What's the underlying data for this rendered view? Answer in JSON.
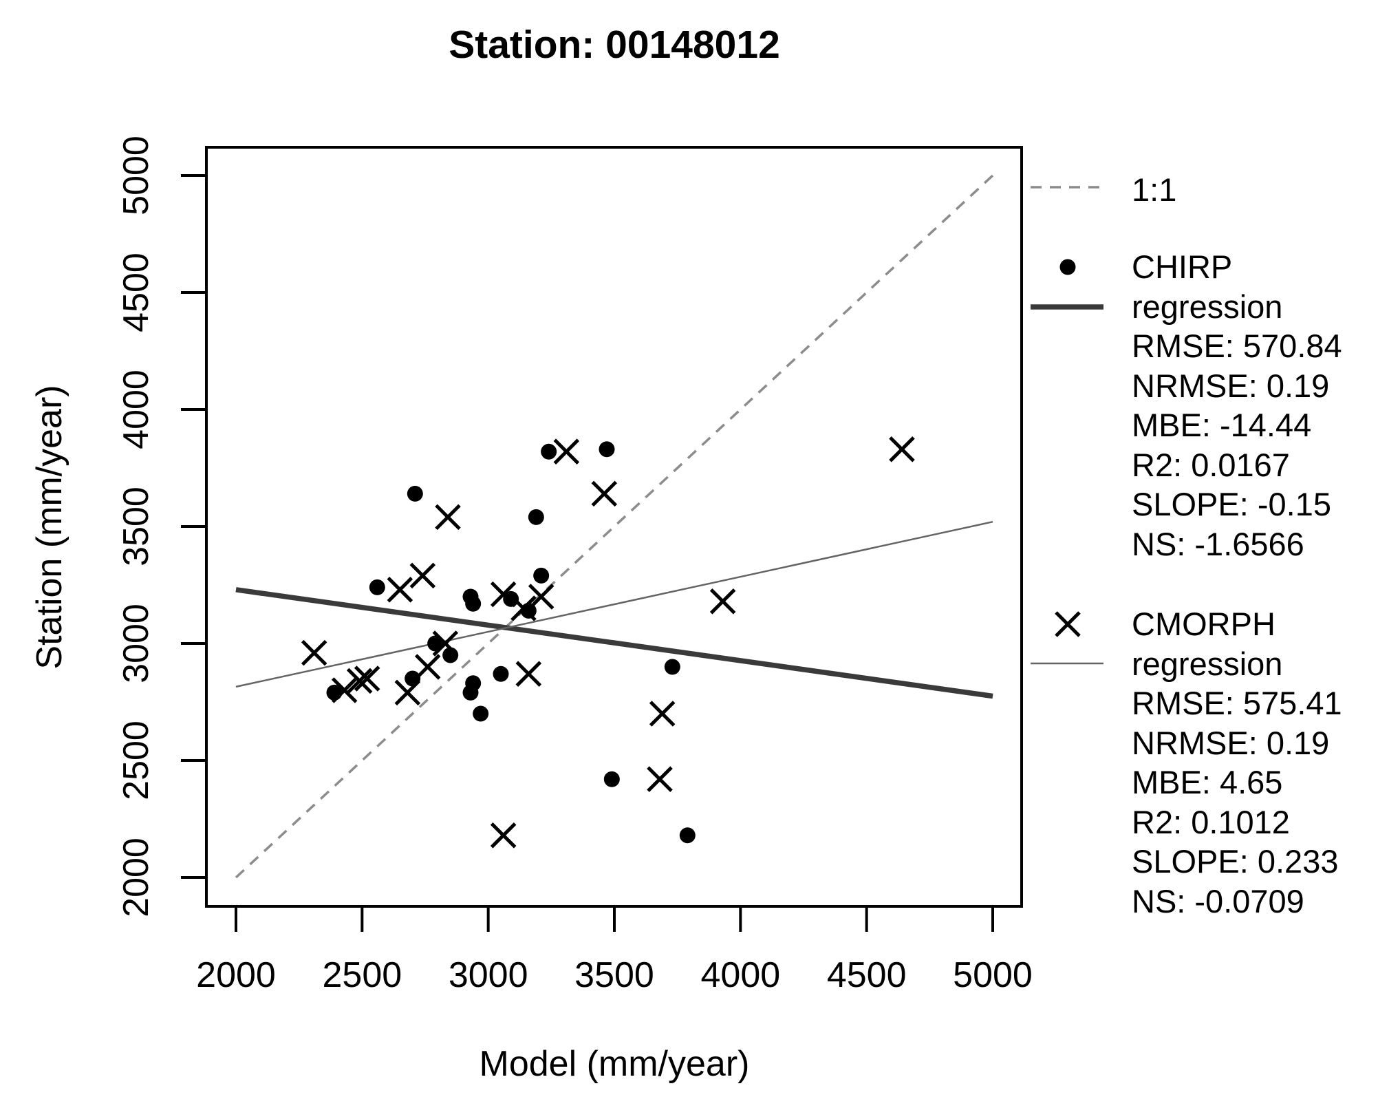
{
  "title": "Station: 00148012",
  "chart_data": {
    "type": "scatter",
    "title": "Station: 00148012",
    "xlabel": "Model (mm/year)",
    "ylabel": "Station (mm/year)",
    "xlim": [
      1880,
      5120
    ],
    "ylim": [
      1880,
      5120
    ],
    "x_ticks": [
      "2000",
      "2500",
      "3000",
      "3500",
      "4000",
      "4500",
      "5000"
    ],
    "y_ticks": [
      "2000",
      "2500",
      "3000",
      "3500",
      "4000",
      "4500",
      "5000"
    ],
    "grid": false,
    "legend_position": "right-outside",
    "marker_color": "#000000",
    "series": [
      {
        "name": "CHIRP",
        "marker": "dot",
        "color": "#000000",
        "points": [
          [
            2390,
            2790
          ],
          [
            2560,
            3240
          ],
          [
            2700,
            2850
          ],
          [
            2710,
            3640
          ],
          [
            2790,
            3000
          ],
          [
            2850,
            2950
          ],
          [
            2930,
            2790
          ],
          [
            2940,
            2830
          ],
          [
            2970,
            2700
          ],
          [
            3050,
            2870
          ],
          [
            2930,
            3200
          ],
          [
            2940,
            3170
          ],
          [
            3090,
            3190
          ],
          [
            3160,
            3140
          ],
          [
            3210,
            3290
          ],
          [
            3190,
            3540
          ],
          [
            3240,
            3820
          ],
          [
            3470,
            3830
          ],
          [
            3490,
            2420
          ],
          [
            3730,
            2900
          ],
          [
            3790,
            2180
          ]
        ]
      },
      {
        "name": "CMORPH",
        "marker": "x",
        "color": "#000000",
        "points": [
          [
            2310,
            2960
          ],
          [
            2430,
            2800
          ],
          [
            2490,
            2840
          ],
          [
            2520,
            2850
          ],
          [
            2650,
            3230
          ],
          [
            2680,
            2790
          ],
          [
            2740,
            3290
          ],
          [
            2760,
            2900
          ],
          [
            2830,
            3000
          ],
          [
            2840,
            3540
          ],
          [
            3060,
            3210
          ],
          [
            3140,
            3150
          ],
          [
            3210,
            3200
          ],
          [
            3160,
            2870
          ],
          [
            3310,
            3820
          ],
          [
            3460,
            3640
          ],
          [
            3680,
            2420
          ],
          [
            3690,
            2700
          ],
          [
            3060,
            2180
          ],
          [
            3930,
            3180
          ],
          [
            4640,
            3830
          ]
        ]
      }
    ],
    "lines": [
      {
        "name": "1:1",
        "style": "dashed",
        "color": "#8c8c8c",
        "width": 3.5,
        "x": [
          2000,
          5000
        ],
        "y": [
          2000,
          5000
        ]
      },
      {
        "name": "CHIRP regression",
        "style": "solid",
        "color": "#3a3a3a",
        "width": 7.5,
        "x": [
          2000,
          5000
        ],
        "y": [
          3230,
          2775
        ]
      },
      {
        "name": "CMORPH regression",
        "style": "solid",
        "color": "#646464",
        "width": 2.5,
        "x": [
          2000,
          5000
        ],
        "y": [
          2815,
          3520
        ]
      }
    ]
  },
  "legend": {
    "groups": [
      {
        "symbol": "dashed-line",
        "lines": [
          "1:1"
        ]
      },
      {
        "symbol": "dot-and-thick-line",
        "lines": [
          "CHIRP",
          "regression",
          "RMSE: 570.84",
          "NRMSE: 0.19",
          "MBE: -14.44",
          "R2: 0.0167",
          "SLOPE: -0.15",
          "NS: -1.6566"
        ]
      },
      {
        "symbol": "x-and-thin-line",
        "lines": [
          "CMORPH",
          "regression",
          "RMSE: 575.41",
          "NRMSE: 0.19",
          "MBE: 4.65",
          "R2: 0.1012",
          "SLOPE: 0.233",
          "NS: -0.0709"
        ]
      }
    ]
  }
}
